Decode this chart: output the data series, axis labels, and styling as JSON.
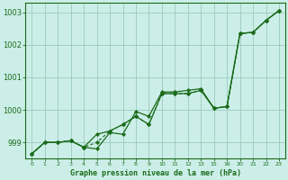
{
  "title": "Graphe pression niveau de la mer (hPa)",
  "bg_color": "#cceee8",
  "grid_color": "#99ccbb",
  "line_color": "#1a6b1a",
  "xlim": [
    -0.5,
    19.5
  ],
  "ylim": [
    998.5,
    1003.3
  ],
  "yticks": [
    999,
    1000,
    1001,
    1002,
    1003
  ],
  "ytick_labels": [
    "999",
    "1000",
    "1001",
    "1002",
    "1003"
  ],
  "xtick_labels": [
    "0",
    "1",
    "2",
    "3",
    "4",
    "5",
    "6",
    "7",
    "8",
    "9",
    "10",
    "11",
    "12",
    "13",
    "15",
    "16",
    "20",
    "21",
    "22",
    "23"
  ],
  "series1": {
    "xi": [
      0,
      1,
      2,
      3,
      4,
      5,
      6,
      7,
      8,
      9,
      10,
      11,
      12,
      13,
      14,
      15,
      16,
      17,
      18,
      19
    ],
    "y": [
      998.65,
      999.0,
      999.0,
      999.05,
      998.85,
      998.8,
      999.3,
      999.25,
      999.95,
      999.8,
      1000.55,
      1000.55,
      1000.6,
      1000.65,
      1000.05,
      1000.1,
      1002.35,
      1002.38,
      1002.75,
      1003.05
    ]
  },
  "series2": {
    "xi": [
      0,
      1,
      2,
      3,
      4,
      5,
      6,
      7,
      8,
      9,
      10,
      11,
      12,
      13,
      14,
      15,
      16,
      17,
      18,
      19
    ],
    "y": [
      998.65,
      999.0,
      999.0,
      999.05,
      998.85,
      999.25,
      999.35,
      999.55,
      999.8,
      999.55,
      1000.5,
      1000.5,
      1000.5,
      1000.6,
      1000.05,
      1000.1,
      1002.35,
      1002.38,
      1002.75,
      1003.05
    ]
  },
  "series3": {
    "xi": [
      0,
      1,
      2,
      3,
      4,
      5,
      6,
      7,
      8,
      9,
      10,
      11,
      12,
      13,
      14,
      15,
      16,
      17,
      18,
      19
    ],
    "y": [
      998.65,
      999.0,
      999.0,
      999.05,
      998.85,
      999.0,
      999.35,
      999.55,
      999.8,
      999.55,
      1000.5,
      1000.5,
      1000.5,
      1000.6,
      1000.05,
      1000.1,
      1002.35,
      1002.38,
      1002.75,
      1003.05
    ]
  },
  "series_diagonal": {
    "xi": [
      0,
      19
    ],
    "y": [
      998.65,
      1003.05
    ]
  }
}
